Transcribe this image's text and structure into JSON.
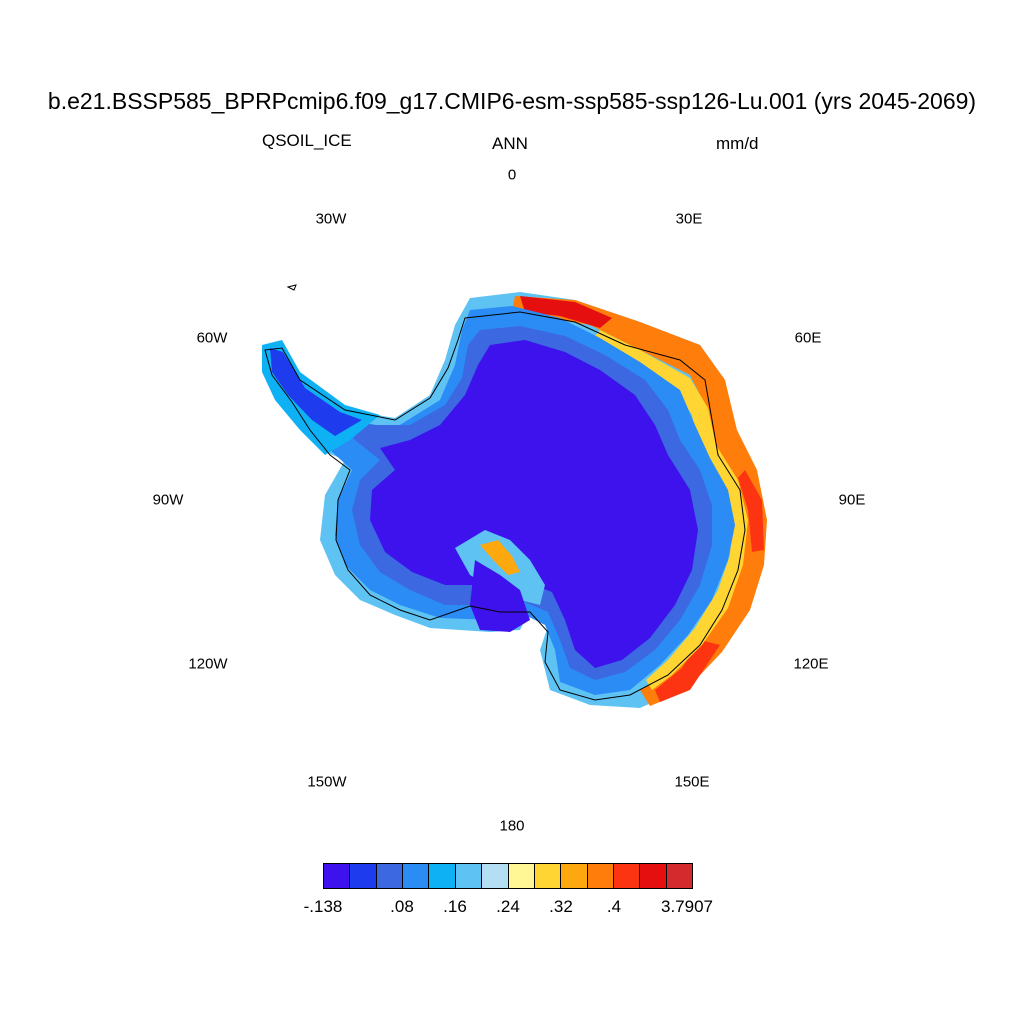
{
  "title": "b.e21.BSSP585_BPRPcmip6.f09_g17.CMIP6-esm-ssp585-ssp126-Lu.001 (yrs 2045-2069)",
  "variable": "QSOIL_ICE",
  "season": "ANN",
  "units": "mm/d",
  "longitude_labels": [
    "0",
    "30E",
    "60E",
    "90E",
    "120E",
    "150E",
    "180",
    "150W",
    "120W",
    "90W",
    "60W",
    "30W"
  ],
  "colorbar": {
    "colors": [
      "#3d12ed",
      "#1e3ced",
      "#3c68e2",
      "#2b8cf5",
      "#0fb1f5",
      "#5ec3f3",
      "#b4def4",
      "#fff695",
      "#fed532",
      "#fda80e",
      "#fe7d0b",
      "#fd3411",
      "#e60f0f",
      "#d42a2d"
    ],
    "labels": [
      "-.138",
      ".08",
      ".16",
      ".24",
      ".32",
      ".4",
      "3.7907"
    ]
  },
  "map": {
    "projection": "south polar stereographic",
    "field": "QSOIL_ICE annual mean over Antarctica",
    "interior_color": "#3d12ed",
    "coastline_color": "#000000"
  }
}
